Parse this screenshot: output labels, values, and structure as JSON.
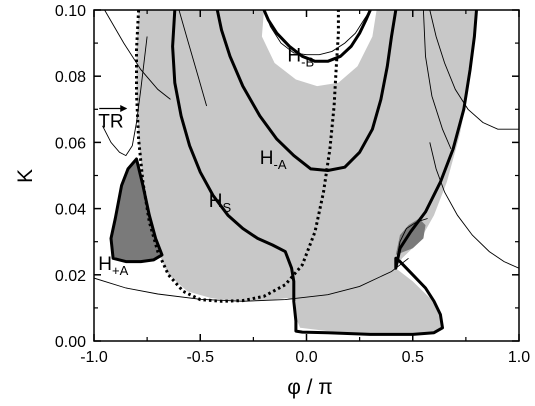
{
  "chart_data": {
    "type": "line",
    "title": "",
    "xlabel": "φ / π",
    "ylabel": "K",
    "xlim": [
      -1.0,
      1.0
    ],
    "ylim": [
      0.0,
      0.1
    ],
    "grid": false,
    "legend": "none",
    "xticks": [
      "-1.0",
      "-0.5",
      "0.0",
      "0.5",
      "1.0"
    ],
    "xtick_values": [
      -1.0,
      -0.5,
      0.0,
      0.5,
      1.0
    ],
    "yticks": [
      "0.00",
      "0.02",
      "0.04",
      "0.06",
      "0.08",
      "0.10"
    ],
    "ytick_values": [
      0.0,
      0.02,
      0.04,
      0.06,
      0.08,
      0.1
    ],
    "colors": {
      "region_light": "#c8c8c8",
      "region_dark": "#7a7a7a",
      "curve": "#000000"
    },
    "regions": [
      {
        "shade": "light",
        "points": [
          [
            -0.79,
            0.1
          ],
          [
            -0.62,
            0.1
          ],
          [
            -0.2,
            0.1
          ],
          [
            -0.21,
            0.092
          ],
          [
            -0.15,
            0.084
          ],
          [
            -0.05,
            0.079
          ],
          [
            0.05,
            0.077
          ],
          [
            0.15,
            0.078
          ],
          [
            0.24,
            0.083
          ],
          [
            0.31,
            0.092
          ],
          [
            0.33,
            0.1
          ],
          [
            0.8,
            0.1
          ],
          [
            0.79,
            0.09
          ],
          [
            0.76,
            0.075
          ],
          [
            0.72,
            0.062
          ],
          [
            0.66,
            0.048
          ],
          [
            0.6,
            0.038
          ],
          [
            0.53,
            0.03
          ],
          [
            0.45,
            0.025
          ],
          [
            0.42,
            0.022
          ],
          [
            0.5,
            0.018
          ],
          [
            0.58,
            0.013
          ],
          [
            0.63,
            0.008
          ],
          [
            0.64,
            0.004
          ],
          [
            0.58,
            0.002
          ],
          [
            0.3,
            0.002
          ],
          [
            0.1,
            0.003
          ],
          [
            -0.03,
            0.004
          ],
          [
            -0.05,
            0.007
          ],
          [
            -0.05,
            0.012
          ],
          [
            -0.09,
            0.013
          ],
          [
            -0.22,
            0.012
          ],
          [
            -0.34,
            0.012
          ],
          [
            -0.45,
            0.013
          ],
          [
            -0.56,
            0.015
          ],
          [
            -0.65,
            0.02
          ],
          [
            -0.7,
            0.027
          ],
          [
            -0.74,
            0.036
          ],
          [
            -0.77,
            0.048
          ],
          [
            -0.79,
            0.061
          ],
          [
            -0.8,
            0.076
          ],
          [
            -0.8,
            0.088
          ]
        ]
      },
      {
        "shade": "dark",
        "points": [
          [
            -0.92,
            0.031
          ],
          [
            -0.9,
            0.037
          ],
          [
            -0.87,
            0.047
          ],
          [
            -0.84,
            0.052
          ],
          [
            -0.8,
            0.055
          ],
          [
            -0.77,
            0.047
          ],
          [
            -0.74,
            0.038
          ],
          [
            -0.71,
            0.031
          ],
          [
            -0.68,
            0.026
          ],
          [
            -0.72,
            0.0245
          ],
          [
            -0.78,
            0.024
          ],
          [
            -0.85,
            0.024
          ],
          [
            -0.91,
            0.025
          ]
        ]
      },
      {
        "shade": "dark",
        "points": [
          [
            0.42,
            0.026
          ],
          [
            0.44,
            0.032
          ],
          [
            0.48,
            0.035
          ],
          [
            0.53,
            0.037
          ],
          [
            0.56,
            0.035
          ],
          [
            0.55,
            0.031
          ],
          [
            0.5,
            0.028
          ]
        ]
      }
    ],
    "series": [
      {
        "name": "H-B",
        "style": "thick",
        "x": [
          -0.2,
          -0.18,
          -0.14,
          -0.08,
          -0.02,
          0.04,
          0.1,
          0.16,
          0.21,
          0.25,
          0.28,
          0.3
        ],
        "y": [
          0.1,
          0.097,
          0.093,
          0.089,
          0.086,
          0.0845,
          0.0845,
          0.086,
          0.089,
          0.093,
          0.097,
          0.1
        ]
      },
      {
        "name": "H-A",
        "style": "thick",
        "x": [
          -0.42,
          -0.4,
          -0.36,
          -0.3,
          -0.22,
          -0.14,
          -0.06,
          0.02,
          0.1,
          0.18,
          0.25,
          0.31,
          0.35,
          0.38,
          0.4,
          0.42
        ],
        "y": [
          0.1,
          0.094,
          0.086,
          0.077,
          0.068,
          0.061,
          0.056,
          0.052,
          0.0515,
          0.0525,
          0.057,
          0.064,
          0.073,
          0.083,
          0.092,
          0.1
        ]
      },
      {
        "name": "HS",
        "style": "thick",
        "x": [
          -0.62,
          -0.63,
          -0.62,
          -0.59,
          -0.55,
          -0.5,
          -0.44,
          -0.37,
          -0.3,
          -0.23,
          -0.16,
          -0.1,
          -0.07,
          -0.06,
          -0.06,
          -0.05,
          -0.05,
          -0.02,
          0.1,
          0.3,
          0.5,
          0.6,
          0.64,
          0.63,
          0.6,
          0.56,
          0.5,
          0.44,
          0.42,
          0.42,
          0.44,
          0.49,
          0.56,
          0.63,
          0.69,
          0.74,
          0.77,
          0.79,
          0.8
        ],
        "y": [
          0.1,
          0.089,
          0.078,
          0.068,
          0.059,
          0.051,
          0.044,
          0.038,
          0.034,
          0.031,
          0.029,
          0.027,
          0.022,
          0.018,
          0.012,
          0.006,
          0.003,
          0.0027,
          0.0025,
          0.002,
          0.002,
          0.0025,
          0.004,
          0.008,
          0.012,
          0.016,
          0.02,
          0.024,
          0.025,
          0.022,
          0.028,
          0.033,
          0.039,
          0.048,
          0.058,
          0.07,
          0.082,
          0.092,
          0.1
        ]
      },
      {
        "name": "TR",
        "style": "dotted",
        "x": [
          -0.79,
          -0.8,
          -0.8,
          -0.79,
          -0.77,
          -0.74,
          -0.7,
          -0.65,
          -0.58,
          -0.5,
          -0.4,
          -0.3,
          -0.2,
          -0.1,
          -0.02,
          0.04,
          0.08,
          0.11,
          0.13,
          0.14,
          0.15,
          0.15
        ],
        "y": [
          0.1,
          0.088,
          0.075,
          0.061,
          0.048,
          0.036,
          0.027,
          0.02,
          0.015,
          0.0125,
          0.012,
          0.0122,
          0.0135,
          0.017,
          0.023,
          0.033,
          0.045,
          0.058,
          0.071,
          0.083,
          0.093,
          0.1
        ]
      },
      {
        "name": "H+A",
        "style": "thick",
        "closed": true,
        "x": [
          -0.92,
          -0.9,
          -0.87,
          -0.84,
          -0.8,
          -0.77,
          -0.74,
          -0.71,
          -0.68,
          -0.72,
          -0.78,
          -0.85,
          -0.91,
          -0.92
        ],
        "y": [
          0.031,
          0.037,
          0.047,
          0.052,
          0.055,
          0.047,
          0.038,
          0.031,
          0.026,
          0.0245,
          0.024,
          0.024,
          0.025,
          0.031
        ]
      }
    ],
    "thin_curves": [
      {
        "x": [
          -0.2,
          -0.17,
          -0.12,
          -0.06,
          0.0,
          0.06,
          0.12,
          0.18,
          0.23,
          0.27,
          0.3
        ],
        "y": [
          0.1,
          0.095,
          0.09,
          0.087,
          0.0865,
          0.0865,
          0.0875,
          0.09,
          0.093,
          0.097,
          0.1
        ]
      },
      {
        "x": [
          -0.95,
          -0.86,
          -0.78,
          -0.7,
          -0.64
        ],
        "y": [
          0.1,
          0.09,
          0.082,
          0.076,
          0.073
        ]
      },
      {
        "x": [
          -0.96,
          -0.92,
          -0.88,
          -0.85,
          -0.82,
          -0.8,
          -0.78,
          -0.75
        ],
        "y": [
          0.065,
          0.06,
          0.057,
          0.056,
          0.059,
          0.066,
          0.076,
          0.092
        ]
      },
      {
        "x": [
          -0.6,
          -0.56,
          -0.51,
          -0.47
        ],
        "y": [
          0.1,
          0.091,
          0.08,
          0.071
        ]
      },
      {
        "x": [
          -1.0,
          -0.85,
          -0.7,
          -0.5,
          -0.3,
          -0.1,
          0.1,
          0.25,
          0.4,
          0.48
        ],
        "y": [
          0.019,
          0.016,
          0.0142,
          0.0126,
          0.012,
          0.0125,
          0.014,
          0.0165,
          0.021,
          0.025
        ]
      },
      {
        "x": [
          0.42,
          0.44,
          0.47,
          0.52,
          0.57
        ],
        "y": [
          0.023,
          0.03,
          0.034,
          0.036,
          0.037
        ]
      },
      {
        "x": [
          0.58,
          0.61,
          0.65,
          0.7,
          0.76,
          0.83,
          0.9,
          0.97,
          1.0
        ],
        "y": [
          0.1,
          0.092,
          0.084,
          0.076,
          0.07,
          0.066,
          0.064,
          0.064,
          0.064
        ]
      },
      {
        "x": [
          0.58,
          0.61,
          0.65,
          0.71,
          0.78,
          0.86,
          0.93,
          1.0
        ],
        "y": [
          0.06,
          0.052,
          0.045,
          0.038,
          0.032,
          0.027,
          0.024,
          0.022
        ]
      },
      {
        "x": [
          0.55,
          0.56,
          0.59,
          0.64,
          0.68
        ],
        "y": [
          0.1,
          0.086,
          0.074,
          0.064,
          0.058
        ]
      }
    ],
    "labels": [
      {
        "main": "H",
        "sub": "-B",
        "x": -0.09,
        "y": 0.0845
      },
      {
        "main": "H",
        "sub": "-A",
        "x": -0.22,
        "y": 0.0535
      },
      {
        "main": "H",
        "sub": "S",
        "x": -0.46,
        "y": 0.0405
      },
      {
        "main": "H",
        "sub": "+A",
        "x": -0.98,
        "y": 0.0215
      },
      {
        "main": "TR",
        "sub": "",
        "x": -0.98,
        "y": 0.0645,
        "arrow": true
      }
    ]
  }
}
